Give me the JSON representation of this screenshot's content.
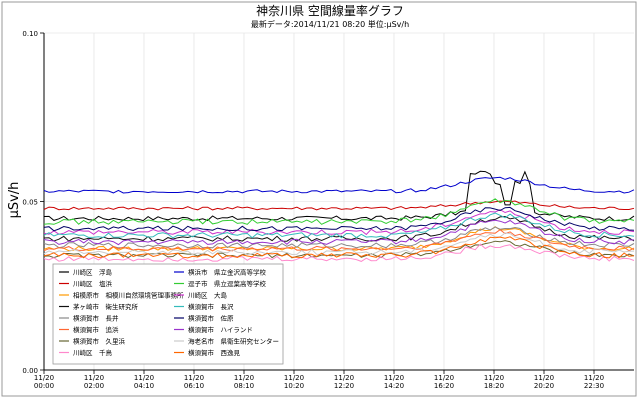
{
  "chart_data": {
    "type": "line",
    "title": "神奈川県 空間線量率グラフ",
    "subtitle": "最新データ:2014/11/21 08:20 単位:μSv/h",
    "ylabel": "μSv/h",
    "xlabel": "",
    "ylim": [
      0,
      0.1
    ],
    "yticks": [
      "0.00",
      "0.05",
      "0.10"
    ],
    "xtick_labels": [
      [
        "11/20",
        "00:00"
      ],
      [
        "11/20",
        "02:00"
      ],
      [
        "11/20",
        "04:10"
      ],
      [
        "11/20",
        "06:10"
      ],
      [
        "11/20",
        "08:10"
      ],
      [
        "11/20",
        "10:20"
      ],
      [
        "11/20",
        "12:20"
      ],
      [
        "11/20",
        "14:20"
      ],
      [
        "11/20",
        "16:20"
      ],
      [
        "11/20",
        "18:20"
      ],
      [
        "11/20",
        "20:20"
      ],
      [
        "11/20",
        "22:30"
      ]
    ],
    "grid": true,
    "legend_position": "bottom-left",
    "series": [
      {
        "name": "川崎区　浮島",
        "color": "#000000",
        "base": 0.045,
        "noise": 0.0007,
        "bump": 0.003,
        "spike": true
      },
      {
        "name": "川崎区　塩浜",
        "color": "#cc0000",
        "base": 0.048,
        "noise": 0.0005,
        "bump": 0.002
      },
      {
        "name": "相模原市　相模川自然環境管理事務所",
        "color": "#ff9900",
        "base": 0.036,
        "noise": 0.0007,
        "bump": 0.006
      },
      {
        "name": "茅ヶ崎市　衛生研究所",
        "color": "#111111",
        "base": 0.039,
        "noise": 0.0008,
        "bump": 0.006
      },
      {
        "name": "横須賀市　長井",
        "color": "#888888",
        "base": 0.037,
        "noise": 0.0008,
        "bump": 0.005
      },
      {
        "name": "横須賀市　追浜",
        "color": "#ff6633",
        "base": 0.036,
        "noise": 0.0007,
        "bump": 0.005
      },
      {
        "name": "横須賀市　久里浜",
        "color": "#666633",
        "base": 0.034,
        "noise": 0.0007,
        "bump": 0.004
      },
      {
        "name": "川崎区　千鳥",
        "color": "#ff88cc",
        "base": 0.033,
        "noise": 0.0008,
        "bump": 0.004
      },
      {
        "name": "横浜市　県立金沢高等学校",
        "color": "#0000cc",
        "base": 0.053,
        "noise": 0.0005,
        "bump": 0.004
      },
      {
        "name": "逗子市　県立逗葉高等学校",
        "color": "#33cc33",
        "base": 0.044,
        "noise": 0.0008,
        "bump": 0.006
      },
      {
        "name": "川崎区　大島",
        "color": "#cc33cc",
        "base": 0.041,
        "noise": 0.0008,
        "bump": 0.006
      },
      {
        "name": "横須賀市　長沢",
        "color": "#33bbbb",
        "base": 0.04,
        "noise": 0.0008,
        "bump": 0.006
      },
      {
        "name": "横須賀市　佐原",
        "color": "#000066",
        "base": 0.042,
        "noise": 0.0007,
        "bump": 0.006
      },
      {
        "name": "横須賀市　ハイランド",
        "color": "#9933cc",
        "base": 0.038,
        "noise": 0.0008,
        "bump": 0.006
      },
      {
        "name": "海老名市　県衛生研究センター",
        "color": "#cccccc",
        "base": 0.035,
        "noise": 0.0008,
        "bump": 0.005
      },
      {
        "name": "横須賀市　西逸見",
        "color": "#ff6600",
        "base": 0.034,
        "noise": 0.0008,
        "bump": 0.005
      }
    ]
  }
}
